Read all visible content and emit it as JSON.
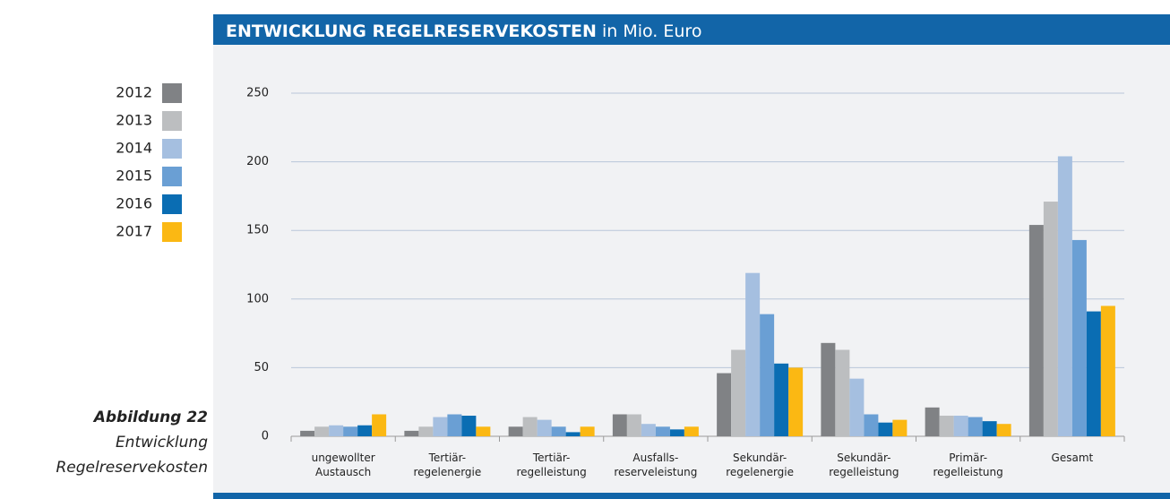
{
  "chart_data": {
    "type": "bar",
    "title": "ENTWICKLUNG REGELRESERVEKOSTEN",
    "subtitle": "in Mio. Euro",
    "figure_label": "Abbildung 22",
    "caption_lines": [
      "Entwicklung",
      "Regelreservekosten"
    ],
    "categories": [
      "ungewollter\nAustausch",
      "Tertiär-\nregelenergie",
      "Tertiär-\nregelleistung",
      "Ausfalls-\nreserveleistung",
      "Sekundär-\nregelenergie",
      "Sekundär-\nregelleistung",
      "Primär-\nregelleistung",
      "Gesamt"
    ],
    "series": [
      {
        "name": "2012",
        "color": "#808285",
        "values": [
          4,
          4,
          7,
          16,
          46,
          68,
          21,
          154
        ]
      },
      {
        "name": "2013",
        "color": "#bcbec0",
        "values": [
          7,
          7,
          14,
          16,
          63,
          63,
          15,
          171
        ]
      },
      {
        "name": "2014",
        "color": "#a5bfe0",
        "values": [
          8,
          14,
          12,
          9,
          119,
          42,
          15,
          204
        ]
      },
      {
        "name": "2015",
        "color": "#6a9fd4",
        "values": [
          7,
          16,
          7,
          7,
          89,
          16,
          14,
          143
        ]
      },
      {
        "name": "2016",
        "color": "#0a6db3",
        "values": [
          8,
          15,
          3,
          5,
          53,
          10,
          11,
          91
        ]
      },
      {
        "name": "2017",
        "color": "#fbb813",
        "values": [
          16,
          7,
          7,
          7,
          50,
          12,
          9,
          95
        ]
      }
    ],
    "ylim": [
      0,
      250
    ],
    "yticks": [
      0,
      50,
      100,
      150,
      200,
      250
    ],
    "grid": true,
    "legend": "left"
  }
}
